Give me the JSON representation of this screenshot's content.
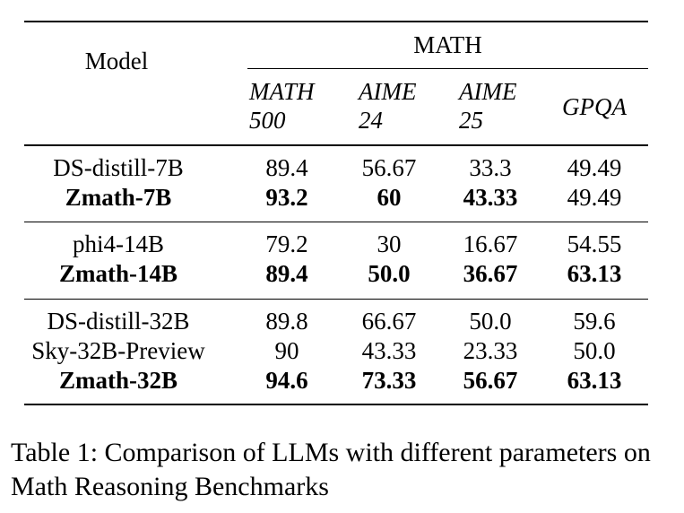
{
  "table": {
    "header": {
      "model_label": "Model",
      "group_label": "MATH",
      "columns": [
        {
          "line1": "MATH",
          "line2": "500"
        },
        {
          "line1": "AIME",
          "line2": "24"
        },
        {
          "line1": "AIME",
          "line2": "25"
        },
        {
          "line1": "GPQA",
          "line2": ""
        }
      ]
    },
    "groups": [
      {
        "rows": [
          {
            "model": "DS-distill-7B",
            "bold": false,
            "values": [
              "89.4",
              "56.67",
              "33.3",
              "49.49"
            ],
            "bold_cells": [
              false,
              false,
              false,
              false
            ]
          },
          {
            "model": "Zmath-7B",
            "bold": true,
            "values": [
              "93.2",
              "60",
              "43.33",
              "49.49"
            ],
            "bold_cells": [
              true,
              true,
              true,
              false
            ]
          }
        ]
      },
      {
        "rows": [
          {
            "model": "phi4-14B",
            "bold": false,
            "values": [
              "79.2",
              "30",
              "16.67",
              "54.55"
            ],
            "bold_cells": [
              false,
              false,
              false,
              false
            ]
          },
          {
            "model": "Zmath-14B",
            "bold": true,
            "values": [
              "89.4",
              "50.0",
              "36.67",
              "63.13"
            ],
            "bold_cells": [
              true,
              true,
              true,
              true
            ]
          }
        ]
      },
      {
        "rows": [
          {
            "model": "DS-distill-32B",
            "bold": false,
            "values": [
              "89.8",
              "66.67",
              "50.0",
              "59.6"
            ],
            "bold_cells": [
              false,
              false,
              false,
              false
            ]
          },
          {
            "model": "Sky-32B-Preview",
            "bold": false,
            "values": [
              "90",
              "43.33",
              "23.33",
              "50.0"
            ],
            "bold_cells": [
              false,
              false,
              false,
              false
            ]
          },
          {
            "model": "Zmath-32B",
            "bold": true,
            "values": [
              "94.6",
              "73.33",
              "56.67",
              "63.13"
            ],
            "bold_cells": [
              true,
              true,
              true,
              true
            ]
          }
        ]
      }
    ]
  },
  "caption": "Table 1: Comparison of LLMs with different parameters on Math Reasoning Benchmarks"
}
